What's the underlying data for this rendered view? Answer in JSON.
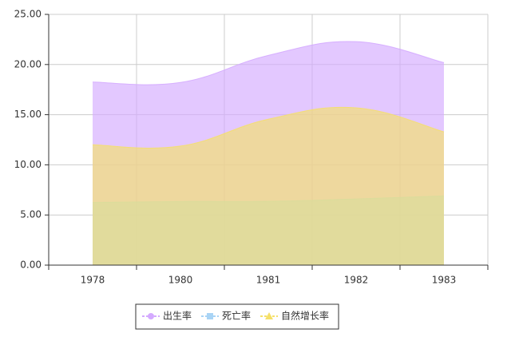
{
  "chart_data": {
    "type": "area",
    "categories": [
      "1978",
      "1980",
      "1981",
      "1982",
      "1983"
    ],
    "series": [
      {
        "name": "出生率",
        "color": "#d4aaff",
        "values": [
          18.25,
          18.21,
          20.91,
          22.28,
          20.19
        ]
      },
      {
        "name": "死亡率",
        "color": "#a9d4f5",
        "values": [
          6.25,
          6.34,
          6.36,
          6.6,
          6.9
        ]
      },
      {
        "name": "自然增长率",
        "color": "#f5e06a",
        "values": [
          12.0,
          11.87,
          14.55,
          15.68,
          13.29
        ]
      }
    ],
    "ylim": [
      0,
      25
    ],
    "yticks": [
      {
        "value": 0,
        "label": "0.00"
      },
      {
        "value": 5,
        "label": "5.00"
      },
      {
        "value": 10,
        "label": "10.00"
      },
      {
        "value": 15,
        "label": "15.00"
      },
      {
        "value": 20,
        "label": "20.00"
      },
      {
        "value": 25,
        "label": "25.00"
      }
    ],
    "grid": true,
    "legend": "bottom"
  }
}
